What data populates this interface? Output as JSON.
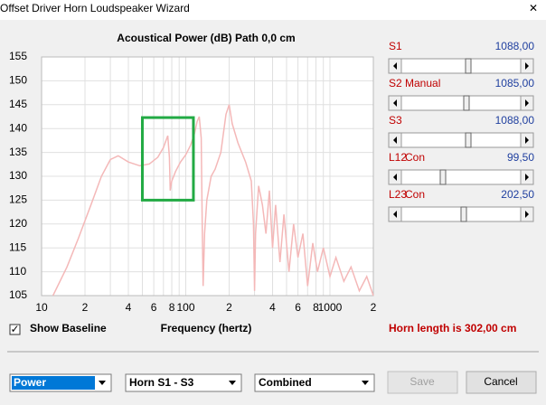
{
  "window": {
    "title": "Offset Driver Horn Loudspeaker Wizard",
    "close": "✕"
  },
  "chart_data": {
    "type": "line",
    "title": "Acoustical Power (dB)   Path 0,0 cm",
    "x_label": "Frequency (hertz)",
    "color": "#f4b8b8",
    "log_x": true,
    "grid": true,
    "xlim": [
      10,
      2000
    ],
    "ylim": [
      105,
      155
    ],
    "xticks": [
      10,
      {
        "value": 20,
        "label": "2"
      },
      {
        "value": 40,
        "label": "4"
      },
      {
        "value": 60,
        "label": "6"
      },
      {
        "value": 80,
        "label": "8"
      },
      100,
      {
        "value": 200,
        "label": "2"
      },
      {
        "value": 400,
        "label": "4"
      },
      {
        "value": 600,
        "label": "6"
      },
      {
        "value": 800,
        "label": "8"
      },
      1000,
      {
        "value": 2000,
        "label": "2"
      }
    ],
    "xminor": [
      30,
      50,
      70,
      90,
      300,
      500,
      700,
      900
    ],
    "yticks": [
      105,
      110,
      115,
      120,
      125,
      130,
      135,
      140,
      145,
      150,
      155
    ],
    "x": [
      12,
      15,
      18,
      22,
      26,
      30,
      34,
      40,
      48,
      56,
      64,
      70,
      75,
      77,
      78,
      80,
      85,
      92,
      100,
      108,
      115,
      120,
      124,
      128,
      130,
      132,
      135,
      140,
      150,
      160,
      175,
      190,
      200,
      210,
      230,
      260,
      285,
      295,
      300,
      305,
      320,
      340,
      360,
      380,
      400,
      420,
      450,
      480,
      520,
      560,
      600,
      650,
      700,
      760,
      820,
      900,
      1000,
      1100,
      1250,
      1400,
      1600,
      1800,
      2000
    ],
    "values": [
      105,
      111,
      117,
      124,
      130,
      133.5,
      134.3,
      133,
      132.2,
      132.6,
      134,
      136,
      138.5,
      134,
      127,
      129,
      131,
      133,
      134.5,
      136.5,
      139,
      141.5,
      142.5,
      138,
      120,
      107,
      118,
      125,
      130,
      131.5,
      135,
      143,
      145,
      141,
      137,
      133,
      129,
      120,
      106,
      118,
      128,
      124,
      118,
      127,
      115,
      124,
      112,
      122,
      110,
      120,
      113,
      118,
      107,
      116,
      110,
      115,
      109,
      113,
      108,
      111,
      106,
      109,
      105
    ],
    "highlight": {
      "x": [
        50,
        113
      ],
      "y": [
        125,
        142.3
      ],
      "color": "#22aa44"
    }
  },
  "params": [
    {
      "name": "S1",
      "value": "1088,00"
    },
    {
      "name": "S2",
      "mode": "Manual",
      "value": "1085,00"
    },
    {
      "name": "S3",
      "value": "1088,00"
    },
    {
      "name": "L12",
      "mode": "Con",
      "value": "99,50"
    },
    {
      "name": "L23",
      "mode": "Con",
      "value": "202,50"
    }
  ],
  "baseline": {
    "label": "Show Baseline",
    "checked": "✓"
  },
  "horn_length": "Horn length is 302,00 cm",
  "controls": {
    "mode": "Power",
    "horn": "Horn S1 - S3",
    "combo": "Combined",
    "save": "Save",
    "cancel": "Cancel"
  }
}
